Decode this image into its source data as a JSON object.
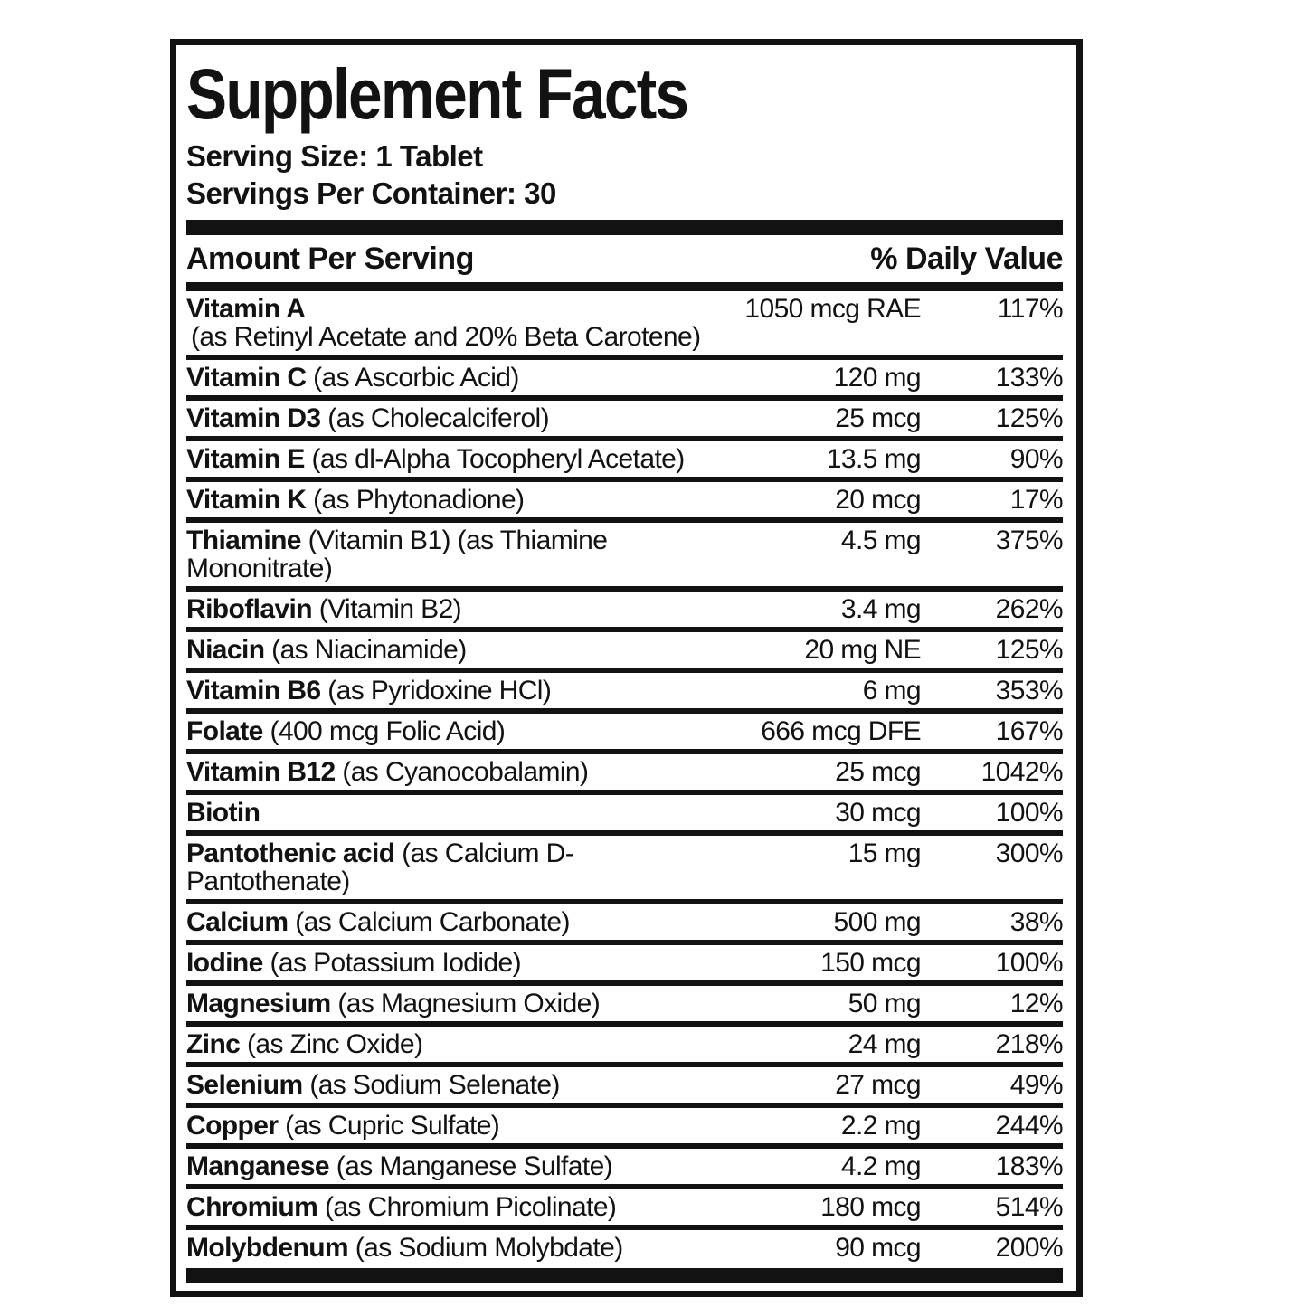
{
  "label": {
    "title": "Supplement Facts",
    "serving_size": "Serving Size: 1 Tablet",
    "servings_per_container": "Servings Per Container: 30",
    "columns": {
      "amount_header": "Amount Per Serving",
      "daily_value_header": "% Daily Value"
    },
    "rows": [
      {
        "name": "Vitamin A",
        "detail": "",
        "sub": "(as Retinyl Acetate and 20% Beta Carotene)",
        "amount": "1050 mcg RAE",
        "dv": "117%"
      },
      {
        "name": "Vitamin C",
        "detail": "(as Ascorbic Acid)",
        "amount": "120 mg",
        "dv": "133%"
      },
      {
        "name": "Vitamin D3",
        "detail": "(as Cholecalciferol)",
        "amount": "25 mcg",
        "dv": "125%"
      },
      {
        "name": "Vitamin E",
        "detail": "(as dl-Alpha Tocopheryl Acetate)",
        "amount": "13.5 mg",
        "dv": "90%"
      },
      {
        "name": "Vitamin K",
        "detail": "(as Phytonadione)",
        "amount": "20 mcg",
        "dv": "17%"
      },
      {
        "name": "Thiamine",
        "detail": "(Vitamin B1) (as Thiamine Mononitrate)",
        "amount": "4.5 mg",
        "dv": "375%"
      },
      {
        "name": "Riboflavin",
        "detail": "(Vitamin B2)",
        "amount": "3.4 mg",
        "dv": "262%"
      },
      {
        "name": "Niacin",
        "detail": "(as Niacinamide)",
        "amount": "20 mg NE",
        "dv": "125%"
      },
      {
        "name": "Vitamin B6",
        "detail": "(as Pyridoxine HCl)",
        "amount": "6 mg",
        "dv": "353%"
      },
      {
        "name": "Folate",
        "detail": "(400 mcg Folic Acid)",
        "amount": "666 mcg DFE",
        "dv": "167%"
      },
      {
        "name": "Vitamin B12",
        "detail": "(as Cyanocobalamin)",
        "amount": "25 mcg",
        "dv": "1042%"
      },
      {
        "name": "Biotin",
        "detail": "",
        "amount": "30 mcg",
        "dv": "100%"
      },
      {
        "name": "Pantothenic acid",
        "detail": "(as Calcium D-Pantothenate)",
        "amount": "15 mg",
        "dv": "300%"
      },
      {
        "name": "Calcium",
        "detail": "(as Calcium Carbonate)",
        "amount": "500 mg",
        "dv": "38%"
      },
      {
        "name": "Iodine",
        "detail": "(as Potassium Iodide)",
        "amount": "150 mcg",
        "dv": "100%"
      },
      {
        "name": "Magnesium",
        "detail": "(as Magnesium Oxide)",
        "amount": "50 mg",
        "dv": "12%"
      },
      {
        "name": "Zinc",
        "detail": "(as Zinc Oxide)",
        "amount": "24 mg",
        "dv": "218%"
      },
      {
        "name": "Selenium",
        "detail": "(as Sodium Selenate)",
        "amount": "27 mcg",
        "dv": "49%"
      },
      {
        "name": "Copper",
        "detail": "(as Cupric Sulfate)",
        "amount": "2.2 mg",
        "dv": "244%"
      },
      {
        "name": "Manganese",
        "detail": "(as Manganese Sulfate)",
        "amount": "4.2 mg",
        "dv": "183%"
      },
      {
        "name": "Chromium",
        "detail": "(as Chromium Picolinate)",
        "amount": "180 mcg",
        "dv": "514%"
      },
      {
        "name": "Molybdenum",
        "detail": "(as Sodium Molybdate)",
        "amount": "90 mcg",
        "dv": "200%"
      }
    ],
    "colors": {
      "ink": "#121212",
      "background": "#ffffff"
    }
  }
}
